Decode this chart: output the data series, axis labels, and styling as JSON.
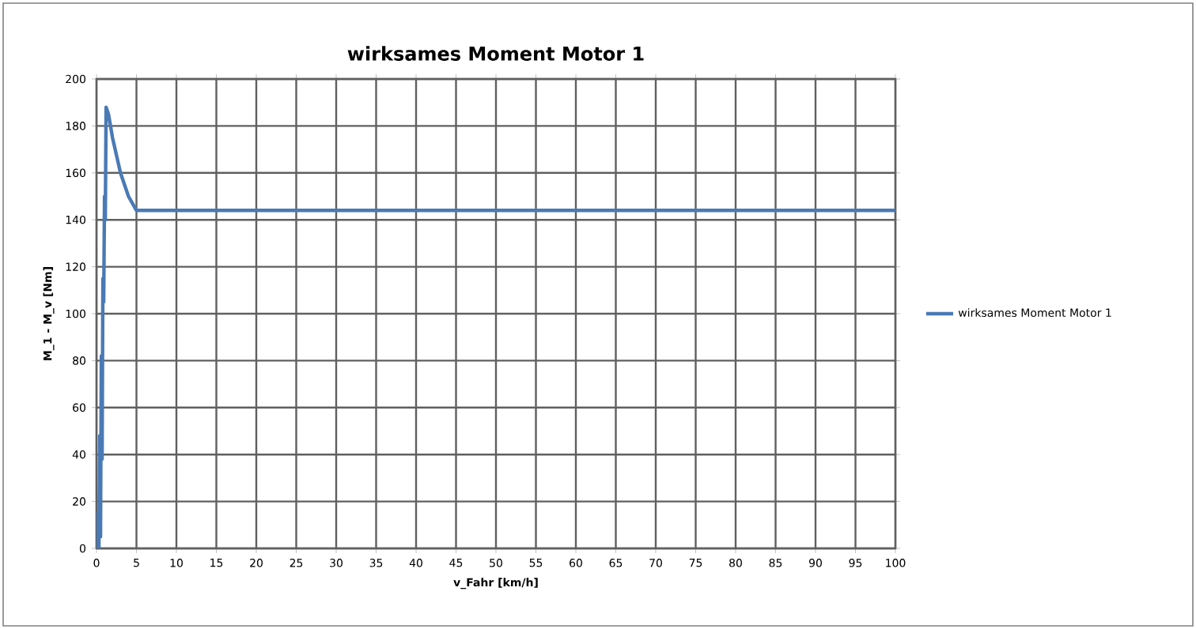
{
  "chart_data": {
    "type": "line",
    "title": "wirksames Moment Motor 1",
    "xlabel": "v_Fahr [km/h]",
    "ylabel": "M_1 - M_v [Nm]",
    "xlim": [
      0,
      100
    ],
    "ylim": [
      0,
      200
    ],
    "xticks": [
      0,
      5,
      10,
      15,
      20,
      25,
      30,
      35,
      40,
      45,
      50,
      55,
      60,
      65,
      70,
      75,
      80,
      85,
      90,
      95,
      100
    ],
    "yticks": [
      0,
      20,
      40,
      60,
      80,
      100,
      120,
      140,
      160,
      180,
      200
    ],
    "grid": true,
    "legend": "right",
    "marker": "none",
    "series": [
      {
        "name": "wirksames Moment Motor 1",
        "color": "#4a7ab5",
        "x": [
          0,
          0.2,
          0.3,
          0.4,
          0.5,
          0.6,
          0.7,
          0.8,
          0.9,
          1.0,
          1.1,
          1.2,
          1.5,
          2,
          3,
          4,
          5,
          10,
          20,
          40,
          60,
          80,
          100
        ],
        "values": [
          0,
          15,
          0,
          48,
          5,
          82,
          38,
          115,
          105,
          150,
          140,
          188,
          185,
          175,
          160,
          150,
          144,
          144,
          144,
          144,
          144,
          144,
          144
        ]
      }
    ]
  }
}
